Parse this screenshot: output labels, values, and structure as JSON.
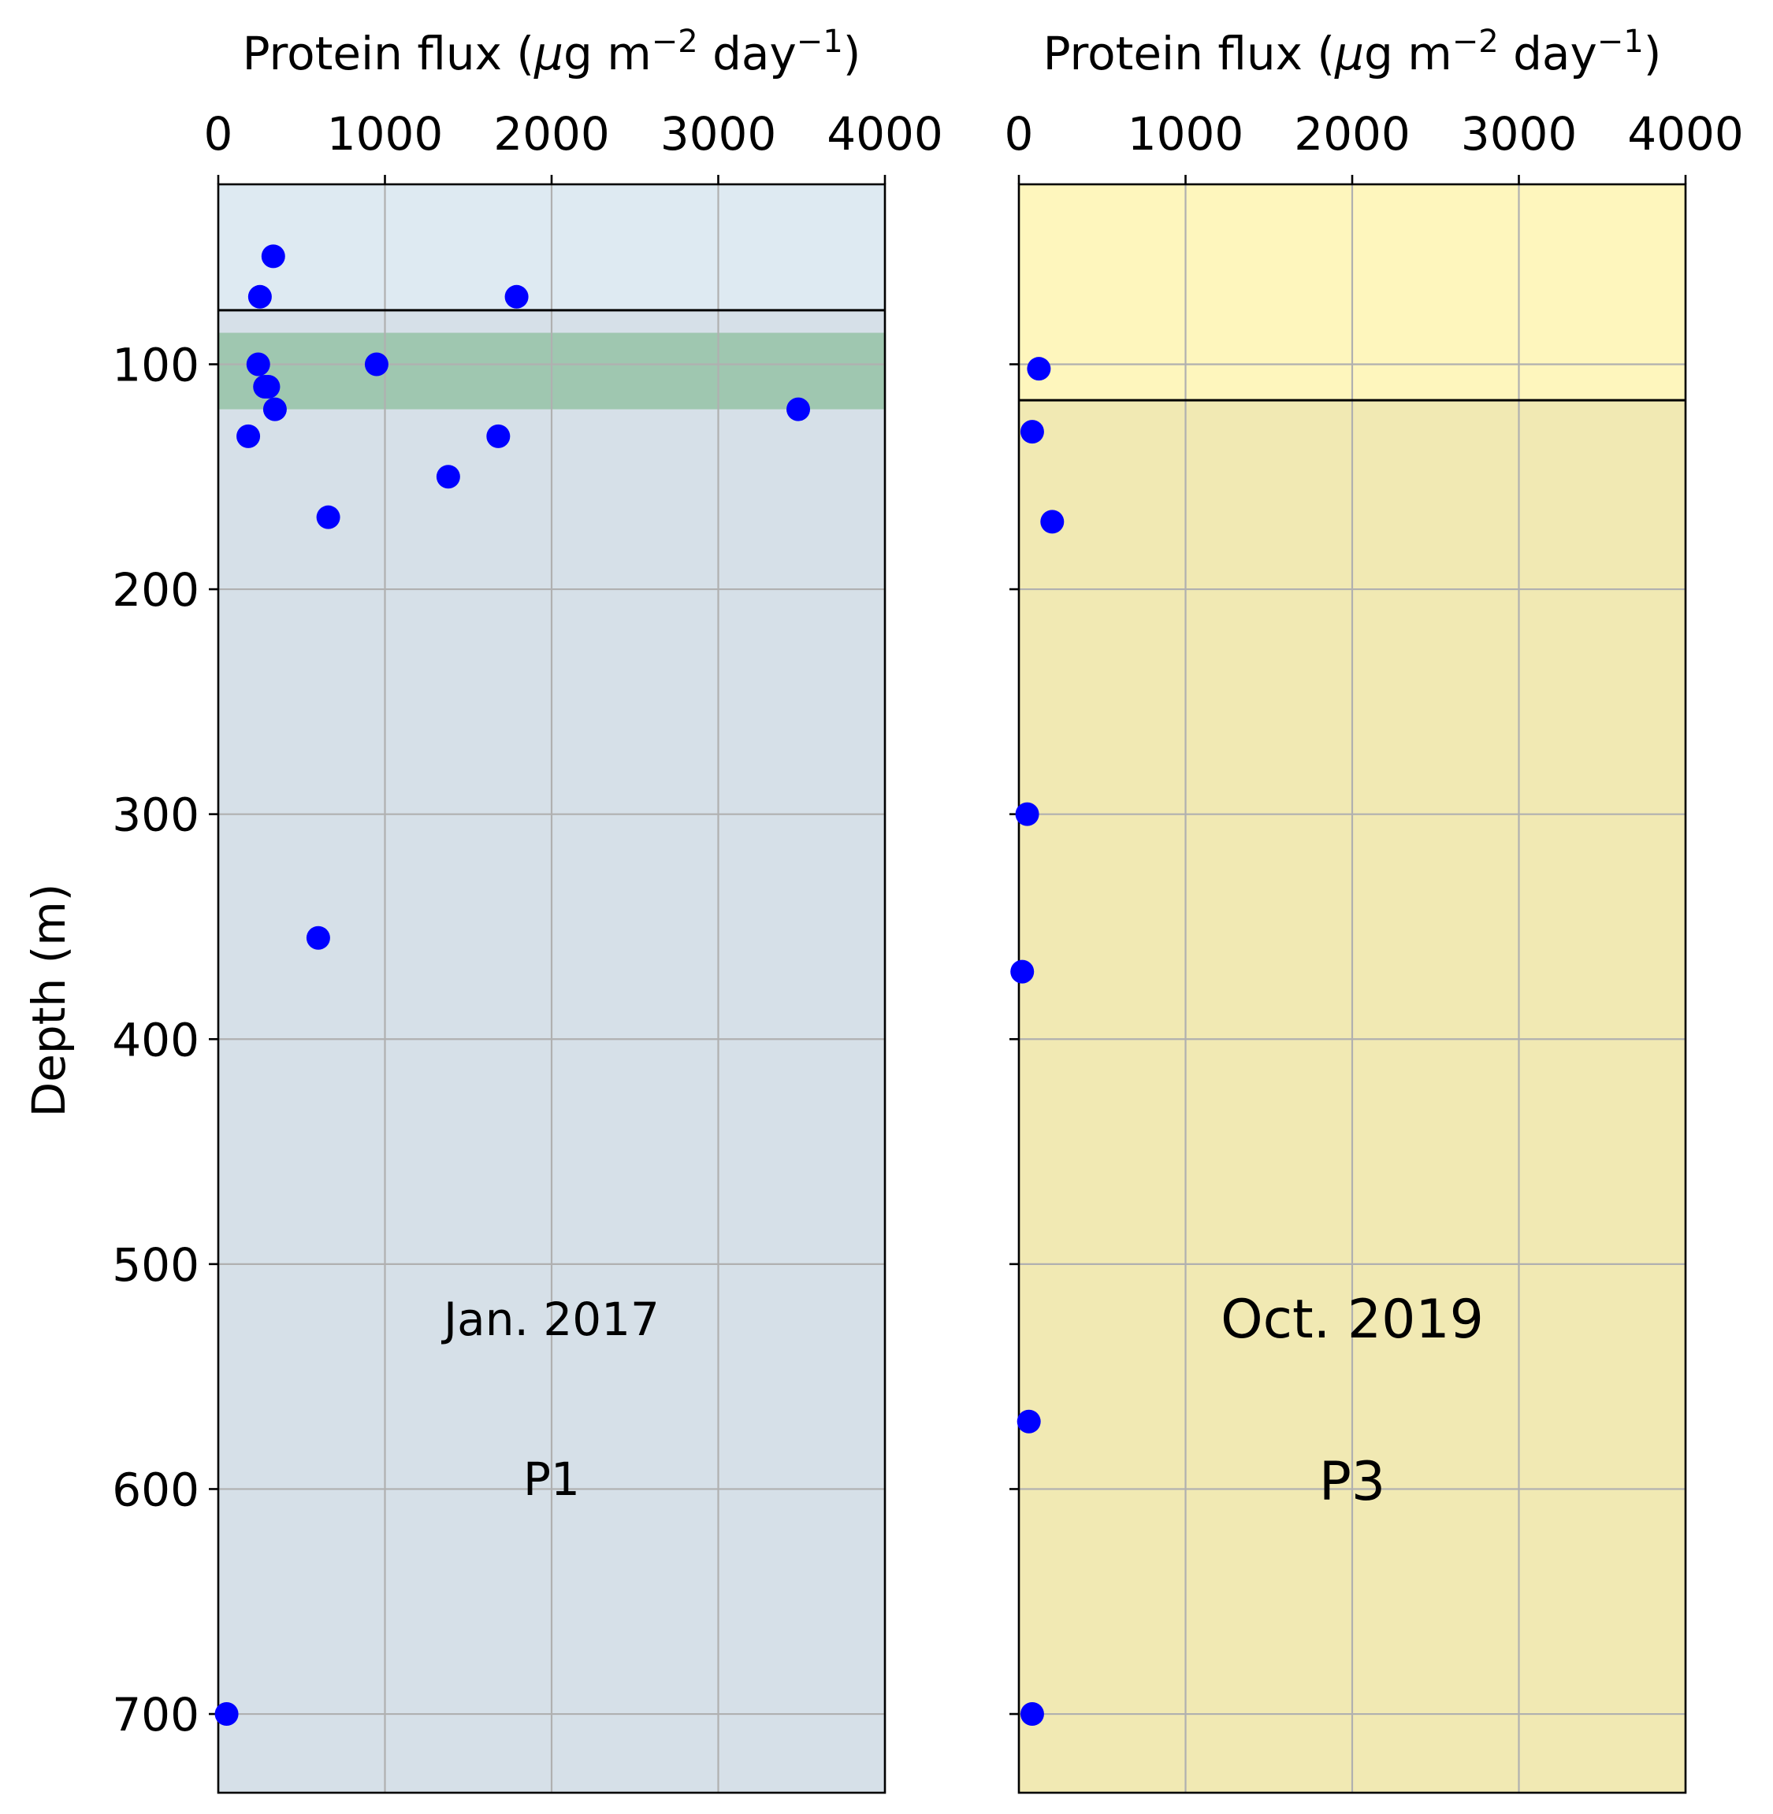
{
  "figure": {
    "ylabel": "Depth (m)"
  },
  "chart_data": [
    {
      "type": "scatter",
      "xlabel": "Protein flux",
      "xunit_main": "g m",
      "xunit_day": " day",
      "xlim": [
        0,
        4000
      ],
      "ylim": [
        735,
        20
      ],
      "y_inverted": true,
      "x_ticks": [
        "0",
        "1000",
        "2000",
        "3000",
        "4000"
      ],
      "y_ticks": [
        "100",
        "200",
        "300",
        "400",
        "500",
        "600",
        "700"
      ],
      "grid": true,
      "background": "#d6e0e8",
      "upper_band_color": "#deeaf2",
      "mixed_layer_depth": 76,
      "green_band": {
        "from": 86,
        "to": 120,
        "color": "#9fc7b0"
      },
      "marker_color": "#0000ff",
      "annotation_date": "Jan. 2017",
      "annotation_station": "P1",
      "series": [
        {
          "x": [
            330,
            250,
            1790,
            240,
            280,
            300,
            340,
            950,
            3480,
            180,
            1680,
            1380,
            660,
            600,
            50
          ],
          "y": [
            52,
            70,
            70,
            100,
            110,
            110,
            120,
            100,
            120,
            132,
            132,
            150,
            168,
            355,
            700
          ]
        }
      ]
    },
    {
      "type": "scatter",
      "xlabel": "Protein flux",
      "xunit_main": "g m",
      "xunit_day": " day",
      "xlim": [
        0,
        4000
      ],
      "ylim": [
        735,
        20
      ],
      "y_inverted": true,
      "x_ticks": [
        "0",
        "1000",
        "2000",
        "3000",
        "4000"
      ],
      "y_ticks": [
        "100",
        "200",
        "300",
        "400",
        "500",
        "600",
        "700"
      ],
      "grid": true,
      "background": "#f1e9b3",
      "upper_band_color": "#fef6bd",
      "mixed_layer_depth": 116,
      "marker_color": "#0000ff",
      "annotation_date": "Oct. 2019",
      "annotation_station": "P3",
      "series": [
        {
          "x": [
            120,
            80,
            200,
            50,
            20,
            60,
            80
          ],
          "y": [
            102,
            130,
            170,
            300,
            370,
            570,
            700
          ]
        }
      ]
    }
  ]
}
